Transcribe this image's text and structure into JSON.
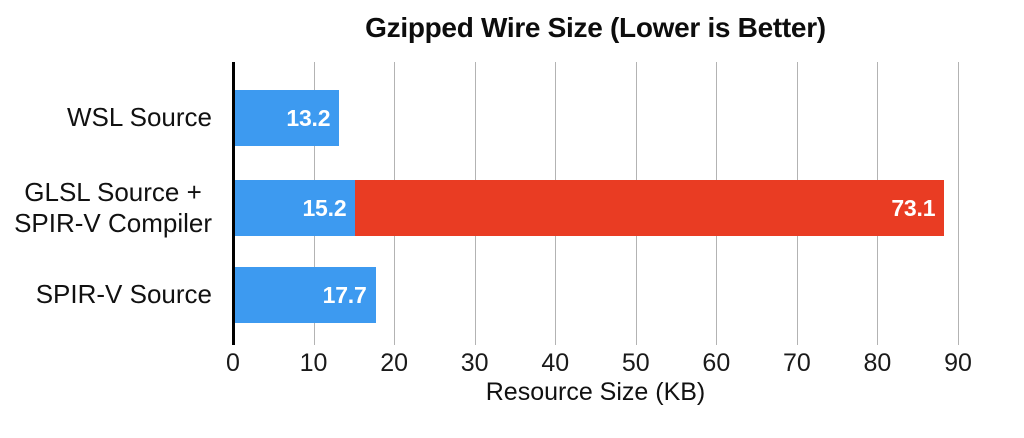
{
  "chart_data": {
    "type": "bar",
    "orientation": "horizontal",
    "stacked": true,
    "title": "Gzipped Wire Size (Lower is Better)",
    "xlabel": "Resource Size (KB)",
    "categories": [
      "WSL Source",
      "GLSL Source +\nSPIR-V Compiler",
      "SPIR-V Source"
    ],
    "series": [
      {
        "name": "series-1",
        "color": "#3d9af0",
        "values": [
          13.2,
          15.2,
          17.7
        ]
      },
      {
        "name": "series-2",
        "color": "#e93c23",
        "values": [
          0,
          73.1,
          0
        ]
      }
    ],
    "value_labels": [
      [
        "13.2"
      ],
      [
        "15.2",
        "73.1"
      ],
      [
        "17.7"
      ]
    ],
    "xticks": [
      0,
      10,
      20,
      30,
      40,
      50,
      60,
      70,
      80,
      90
    ],
    "xlim": [
      0,
      90
    ],
    "grid": true,
    "legend": false
  },
  "colors": {
    "bar_blue": "#3d9af0",
    "bar_red": "#e93c23",
    "gridline": "#b3b3b3",
    "axis": "#000000",
    "value_text": "#ffffff",
    "text": "#111111"
  }
}
